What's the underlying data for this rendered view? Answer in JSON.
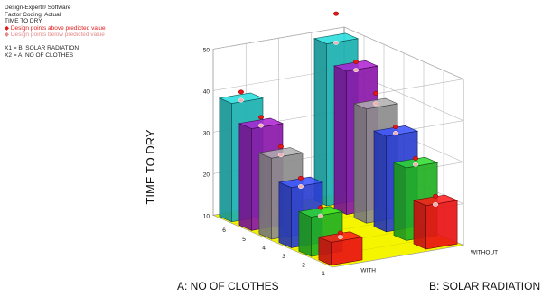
{
  "legend": {
    "software": "Design-Expert® Software",
    "coding": "Factor Coding: Actual",
    "response": "TIME TO DRY",
    "above": "Design points above predicted value",
    "below": "Design points below predicted value",
    "x1": "X1 = B: SOLAR RADIATION",
    "x2": "X2 = A: NO OF CLOTHES"
  },
  "chart_data": {
    "type": "bar3d",
    "ylabel": "TIME TO DRY",
    "xlabel": "A: NO OF CLOTHES",
    "zlabel": "B: SOLAR RADIATION",
    "yticks": [
      "10",
      "20",
      "30",
      "40",
      "50"
    ],
    "ylim": [
      10,
      50
    ],
    "categories": [
      "1",
      "2",
      "3",
      "4",
      "5",
      "6"
    ],
    "depth_categories": [
      "WITH",
      "WITHOUT"
    ],
    "series": [
      {
        "name": "WITH",
        "values": [
          15.5,
          19.5,
          24.5,
          29.5,
          34.5,
          38.5
        ]
      },
      {
        "name": "WITHOUT",
        "values": [
          20.5,
          27.5,
          33.0,
          37.5,
          44.5,
          49.0
        ]
      }
    ],
    "design_points_above": [
      [
        16.5,
        20.5,
        25.5,
        31.0,
        36.0,
        40.0
      ],
      [
        21.5,
        28.5,
        34.0,
        40.0,
        45.5,
        55.0
      ]
    ],
    "design_points_below": [
      [
        15.5,
        18.5,
        23.5,
        29.0,
        34.0,
        38.0
      ],
      [
        19.5,
        27.0,
        32.5,
        37.5,
        43.5,
        48.0
      ]
    ],
    "bar_colors": [
      "#e81414",
      "#22b022",
      "#2a3fd0",
      "#8c8c8c",
      "#8a18a8",
      "#1ab0b0"
    ],
    "floor_color": "#f5f500",
    "point_above_color": "#e01818",
    "point_below_color": "#f0b0b0"
  }
}
